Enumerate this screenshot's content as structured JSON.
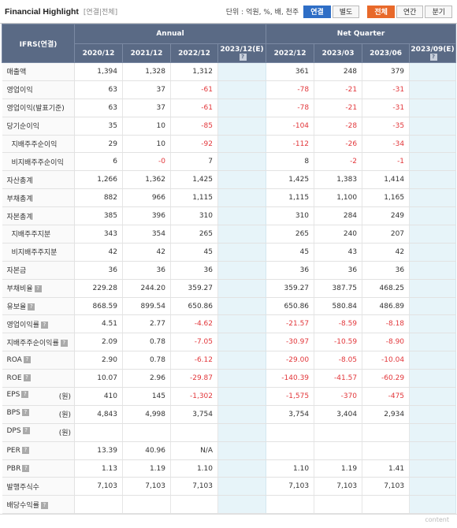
{
  "header": {
    "title": "Financial Highlight",
    "subtitle": "[연결|전체]",
    "unit": "단위 : 억원, %, 배, 천주",
    "buttons_scope": [
      "연결",
      "별도"
    ],
    "buttons_period": [
      "전체",
      "연간",
      "분기"
    ]
  },
  "table": {
    "corner": "IFRS(연결)",
    "group_annual": "Annual",
    "group_quarter": "Net Quarter",
    "columns": [
      "2020/12",
      "2021/12",
      "2022/12",
      "2023/12(E)",
      "2022/12",
      "2023/03",
      "2023/06",
      "2023/09(E)"
    ],
    "rows": [
      {
        "label": "매출액",
        "values": [
          "1,394",
          "1,328",
          "1,312",
          "",
          "361",
          "248",
          "379",
          ""
        ]
      },
      {
        "label": "영업이익",
        "values": [
          "63",
          "37",
          "-61",
          "",
          "-78",
          "-21",
          "-31",
          ""
        ]
      },
      {
        "label": "영업이익(발표기준)",
        "values": [
          "63",
          "37",
          "-61",
          "",
          "-78",
          "-21",
          "-31",
          ""
        ]
      },
      {
        "label": "당기순이익",
        "values": [
          "35",
          "10",
          "-85",
          "",
          "-104",
          "-28",
          "-35",
          ""
        ]
      },
      {
        "label": "지배주주순이익",
        "values": [
          "29",
          "10",
          "-92",
          "",
          "-112",
          "-26",
          "-34",
          ""
        ]
      },
      {
        "label": "비지배주주순이익",
        "values": [
          "6",
          "-0",
          "7",
          "",
          "8",
          "-2",
          "-1",
          ""
        ]
      },
      {
        "label": "자산총계",
        "values": [
          "1,266",
          "1,362",
          "1,425",
          "",
          "1,425",
          "1,383",
          "1,414",
          ""
        ]
      },
      {
        "label": "부채총계",
        "values": [
          "882",
          "966",
          "1,115",
          "",
          "1,115",
          "1,100",
          "1,165",
          ""
        ]
      },
      {
        "label": "자본총계",
        "values": [
          "385",
          "396",
          "310",
          "",
          "310",
          "284",
          "249",
          ""
        ]
      },
      {
        "label": "지배주주지분",
        "values": [
          "343",
          "354",
          "265",
          "",
          "265",
          "240",
          "207",
          ""
        ]
      },
      {
        "label": "비지배주주지분",
        "values": [
          "42",
          "42",
          "45",
          "",
          "45",
          "43",
          "42",
          ""
        ]
      },
      {
        "label": "자본금",
        "values": [
          "36",
          "36",
          "36",
          "",
          "36",
          "36",
          "36",
          ""
        ]
      },
      {
        "label": "부채비율",
        "values": [
          "229.28",
          "244.20",
          "359.27",
          "",
          "359.27",
          "387.75",
          "468.25",
          ""
        ]
      },
      {
        "label": "유보율",
        "values": [
          "868.59",
          "899.54",
          "650.86",
          "",
          "650.86",
          "580.84",
          "486.89",
          ""
        ]
      },
      {
        "label": "영업이익률",
        "values": [
          "4.51",
          "2.77",
          "-4.62",
          "",
          "-21.57",
          "-8.59",
          "-8.18",
          ""
        ]
      },
      {
        "label": "지배주주순이익률",
        "values": [
          "2.09",
          "0.78",
          "-7.05",
          "",
          "-30.97",
          "-10.59",
          "-8.90",
          ""
        ]
      },
      {
        "label": "ROA",
        "values": [
          "2.90",
          "0.78",
          "-6.12",
          "",
          "-29.00",
          "-8.05",
          "-10.04",
          ""
        ]
      },
      {
        "label": "ROE",
        "values": [
          "10.07",
          "2.96",
          "-29.87",
          "",
          "-140.39",
          "-41.57",
          "-60.29",
          ""
        ]
      },
      {
        "label": "EPS",
        "unit": "(원)",
        "values": [
          "410",
          "145",
          "-1,302",
          "",
          "-1,575",
          "-370",
          "-475",
          ""
        ]
      },
      {
        "label": "BPS",
        "unit": "(원)",
        "values": [
          "4,843",
          "4,998",
          "3,754",
          "",
          "3,754",
          "3,404",
          "2,934",
          ""
        ]
      },
      {
        "label": "DPS",
        "unit": "(원)",
        "values": [
          "",
          "",
          "",
          "",
          "",
          "",
          "",
          ""
        ]
      },
      {
        "label": "PER",
        "values": [
          "13.39",
          "40.96",
          "N/A",
          "",
          "",
          "",
          "",
          ""
        ]
      },
      {
        "label": "PBR",
        "values": [
          "1.13",
          "1.19",
          "1.10",
          "",
          "1.10",
          "1.19",
          "1.41",
          ""
        ]
      },
      {
        "label": "발행주식수",
        "values": [
          "7,103",
          "7,103",
          "7,103",
          "",
          "7,103",
          "7,103",
          "7,103",
          ""
        ]
      },
      {
        "label": "배당수익률",
        "values": [
          "",
          "",
          "",
          "",
          "",
          "",
          "",
          ""
        ]
      }
    ]
  },
  "footer": "content"
}
